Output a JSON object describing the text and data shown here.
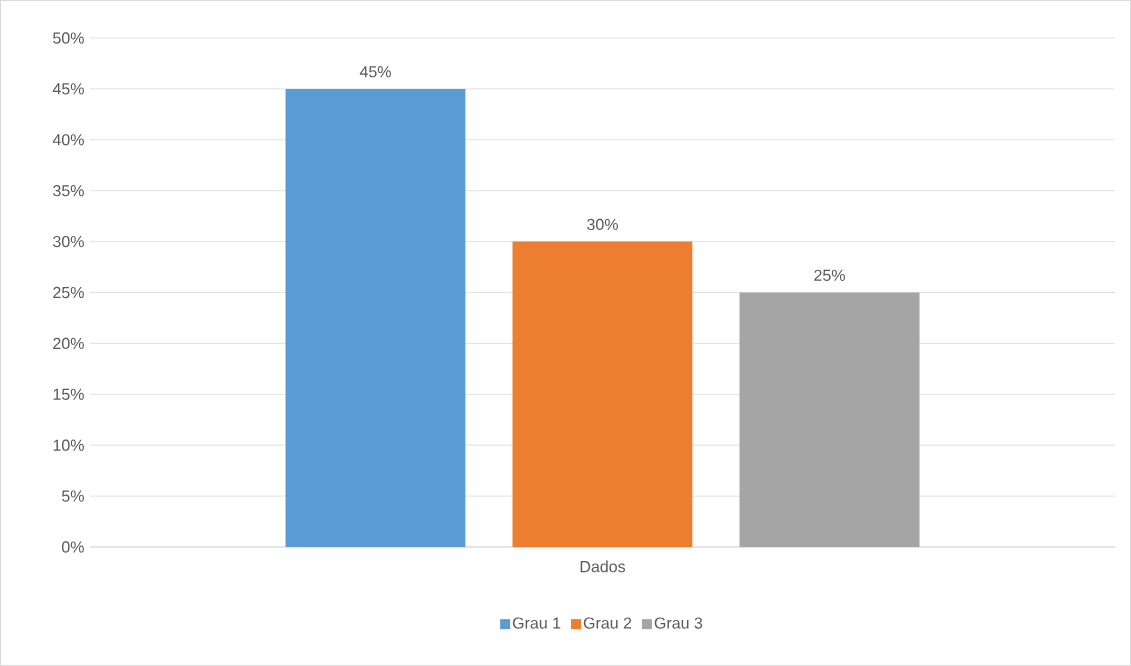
{
  "chart_data": {
    "type": "bar",
    "categories": [
      "Dados"
    ],
    "series": [
      {
        "name": "Grau 1",
        "color": "#5b9bd5",
        "values": [
          45
        ],
        "value_labels": [
          "45%"
        ]
      },
      {
        "name": "Grau 2",
        "color": "#ed7d31",
        "values": [
          30
        ],
        "value_labels": [
          "30%"
        ]
      },
      {
        "name": "Grau 3",
        "color": "#a5a5a5",
        "values": [
          25
        ],
        "value_labels": [
          "25%"
        ]
      }
    ],
    "ylim": [
      0,
      50
    ],
    "yticks": [
      {
        "value": 0,
        "label": "0%"
      },
      {
        "value": 5,
        "label": "5%"
      },
      {
        "value": 10,
        "label": "10%"
      },
      {
        "value": 15,
        "label": "15%"
      },
      {
        "value": 20,
        "label": "20%"
      },
      {
        "value": 25,
        "label": "25%"
      },
      {
        "value": 30,
        "label": "30%"
      },
      {
        "value": 35,
        "label": "35%"
      },
      {
        "value": 40,
        "label": "40%"
      },
      {
        "value": 45,
        "label": "45%"
      },
      {
        "value": 50,
        "label": "50%"
      }
    ],
    "grid": "y",
    "legend": "bottom"
  }
}
